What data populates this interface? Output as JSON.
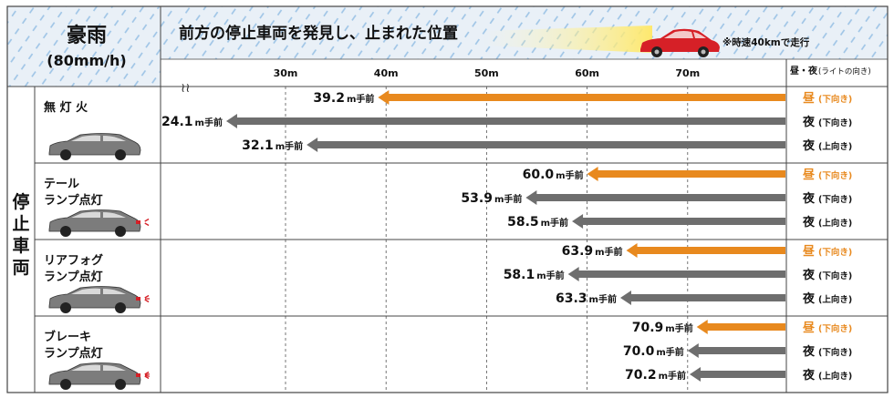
{
  "header": {
    "condition": "豪雨",
    "condition_sub": "(80mm/h)",
    "title": "前方の停止車両を発見し、止まれた位置",
    "speed_note": "※時速40kmで走行",
    "col_header": "昼・夜",
    "col_header_note": "(ライトの向き)"
  },
  "side_label": [
    "停",
    "止",
    "車",
    "両"
  ],
  "colors": {
    "day": "#e8891e",
    "night": "#6e6e6e",
    "car_red": "#d62027",
    "rain_bg": "#e9f0f7",
    "rain_line": "#9cc3e6"
  },
  "chart_data": {
    "type": "bar",
    "unit": "m手前",
    "x_ticks": [
      "30m",
      "40m",
      "50m",
      "60m",
      "70m"
    ],
    "x_tick_values": [
      30,
      40,
      50,
      60,
      70
    ],
    "groups": [
      {
        "label": [
          "無 灯 火"
        ],
        "rows": [
          {
            "value": 39.2,
            "value_text": "39.2",
            "light": "昼",
            "dir": "(下向き)",
            "kind": "day"
          },
          {
            "value": 24.1,
            "value_text": "24.1",
            "light": "夜",
            "dir": "(下向き)",
            "kind": "night"
          },
          {
            "value": 32.1,
            "value_text": "32.1",
            "light": "夜",
            "dir": "(上向き)",
            "kind": "night"
          }
        ]
      },
      {
        "label": [
          "テール",
          "ランプ点灯"
        ],
        "rows": [
          {
            "value": 60.0,
            "value_text": "60.0",
            "light": "昼",
            "dir": "(下向き)",
            "kind": "day"
          },
          {
            "value": 53.9,
            "value_text": "53.9",
            "light": "夜",
            "dir": "(下向き)",
            "kind": "night"
          },
          {
            "value": 58.5,
            "value_text": "58.5",
            "light": "夜",
            "dir": "(上向き)",
            "kind": "night"
          }
        ]
      },
      {
        "label": [
          "リアフォグ",
          "ランプ点灯"
        ],
        "rows": [
          {
            "value": 63.9,
            "value_text": "63.9",
            "light": "昼",
            "dir": "(下向き)",
            "kind": "day"
          },
          {
            "value": 58.1,
            "value_text": "58.1",
            "light": "夜",
            "dir": "(下向き)",
            "kind": "night"
          },
          {
            "value": 63.3,
            "value_text": "63.3",
            "light": "夜",
            "dir": "(上向き)",
            "kind": "night"
          }
        ]
      },
      {
        "label": [
          "ブレーキ",
          "ランプ点灯"
        ],
        "rows": [
          {
            "value": 70.9,
            "value_text": "70.9",
            "light": "昼",
            "dir": "(下向き)",
            "kind": "day"
          },
          {
            "value": 70.0,
            "value_text": "70.0",
            "light": "夜",
            "dir": "(下向き)",
            "kind": "night"
          },
          {
            "value": 70.2,
            "value_text": "70.2",
            "light": "夜",
            "dir": "(上向き)",
            "kind": "night"
          }
        ]
      }
    ]
  }
}
